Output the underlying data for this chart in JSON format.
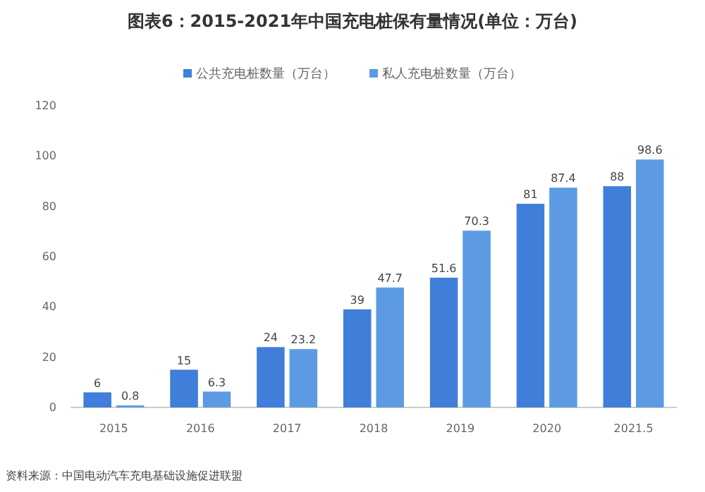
{
  "chart_data": {
    "type": "bar",
    "title": "图表6：2015-2021年中国充电桩保有量情况(单位：万台)",
    "categories": [
      "2015",
      "2016",
      "2017",
      "2018",
      "2019",
      "2020",
      "2021.5"
    ],
    "series": [
      {
        "name": "公共充电桩数量（万台）",
        "color": "#3f7fd9",
        "values": [
          6,
          15,
          24,
          39,
          51.6,
          81,
          88
        ]
      },
      {
        "name": "私人充电桩数量（万台）",
        "color": "#5c9be3",
        "values": [
          0.8,
          6.3,
          23.2,
          47.7,
          70.3,
          87.4,
          98.6
        ]
      }
    ],
    "ylim": [
      0,
      120
    ],
    "yticks": [
      0,
      20,
      40,
      60,
      80,
      100,
      120
    ],
    "grid": false,
    "legend": "top",
    "data_labels": true,
    "annotations": [
      "资料来源：中国电动汽车充电基础设施促进联盟"
    ]
  }
}
